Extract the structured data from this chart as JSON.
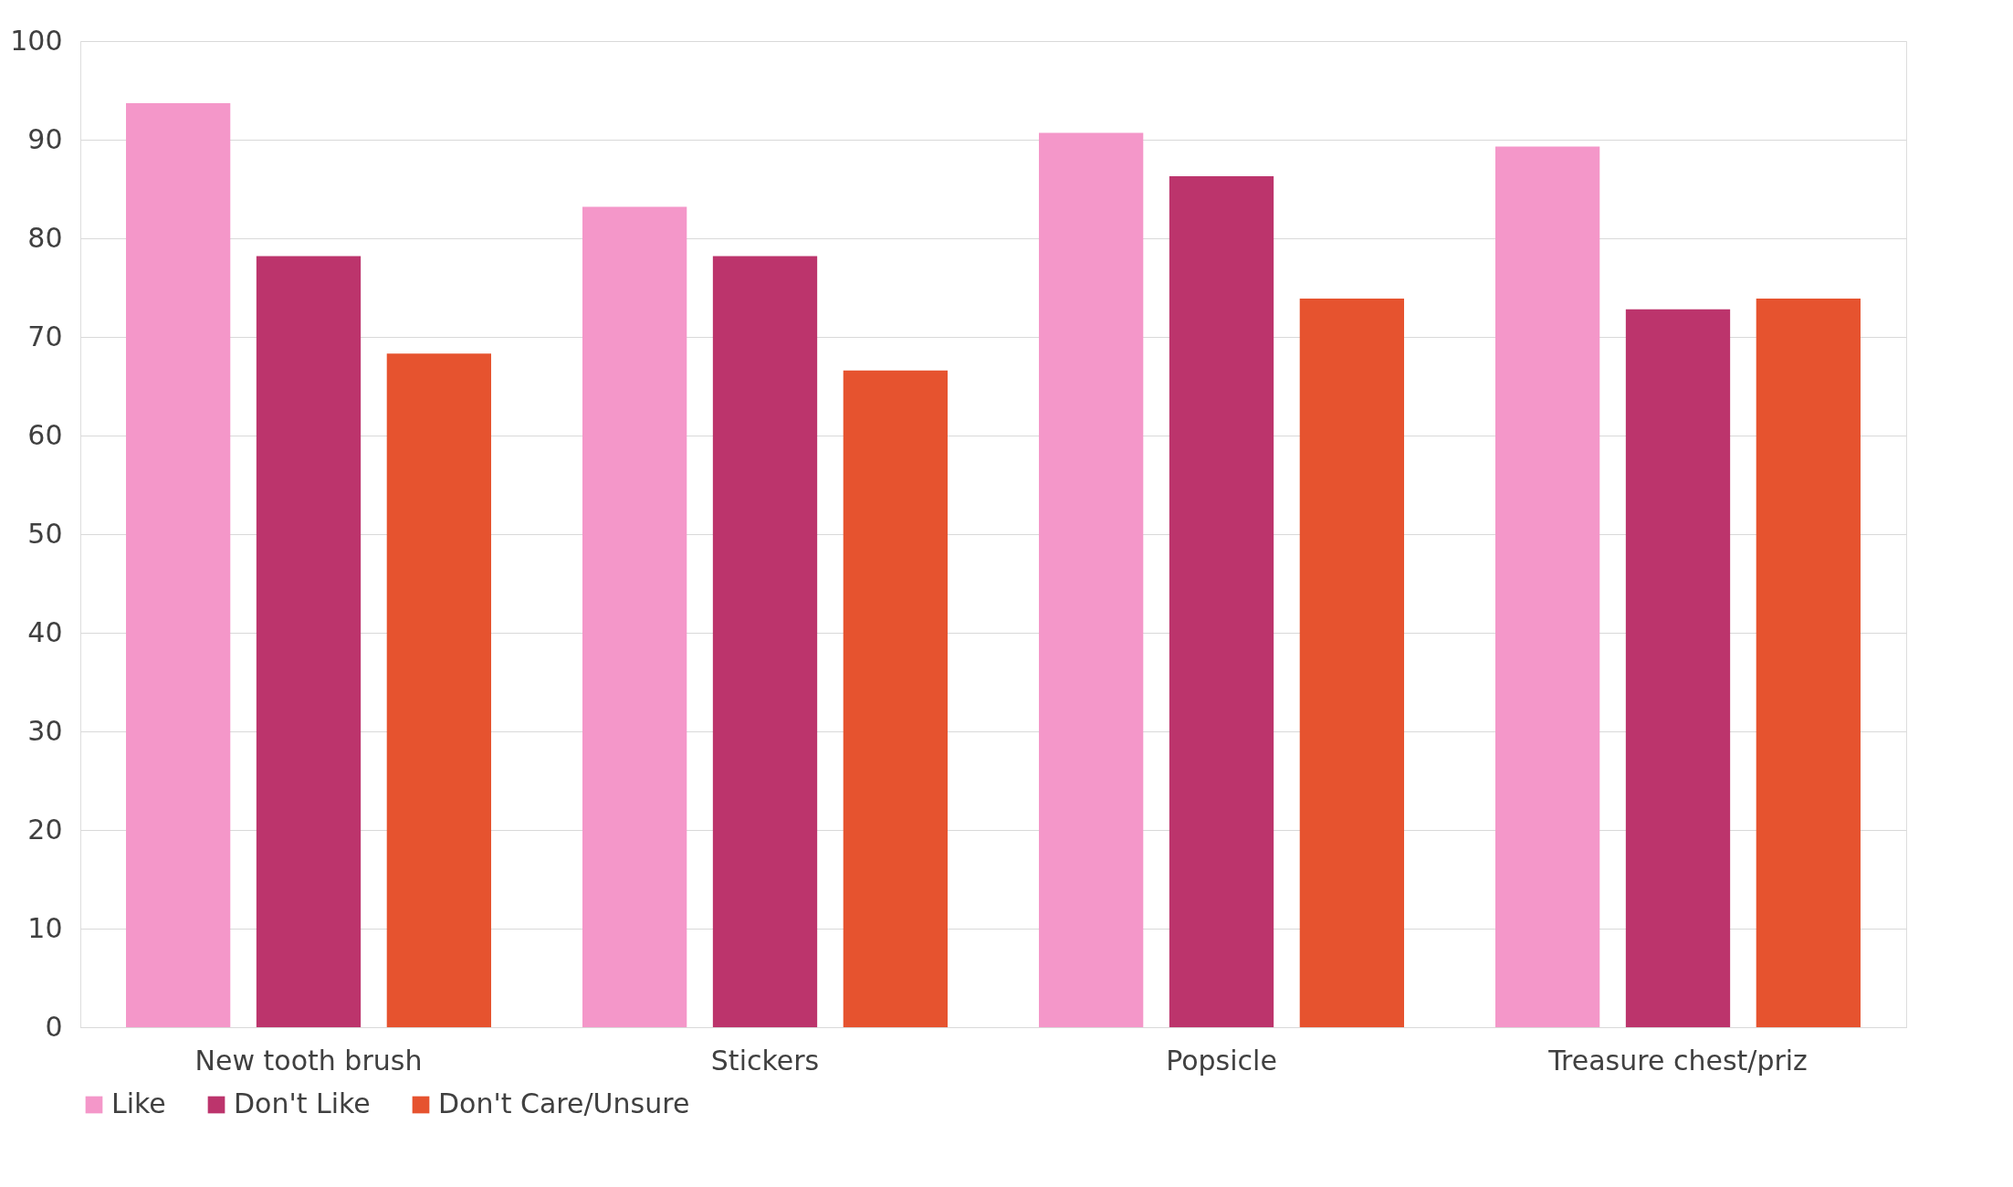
{
  "chart_data": {
    "type": "bar",
    "categories": [
      "New tooth brush",
      "Stickers",
      "Popsicle",
      "Treasure chest/priz"
    ],
    "series": [
      {
        "name": "Like",
        "color": "#f497c9",
        "values": [
          93.7,
          83.2,
          90.7,
          89.3
        ]
      },
      {
        "name": "Don't Like",
        "color": "#bc346c",
        "values": [
          78.2,
          78.2,
          86.3,
          72.8
        ]
      },
      {
        "name": "Don't Care/Unsure",
        "color": "#e6532f",
        "values": [
          68.3,
          66.6,
          73.9,
          73.9
        ]
      }
    ],
    "ylim": [
      0,
      100
    ],
    "yticks": [
      0,
      10,
      20,
      30,
      40,
      50,
      60,
      70,
      80,
      90,
      100
    ],
    "grid": "y",
    "legend": "bottom"
  }
}
